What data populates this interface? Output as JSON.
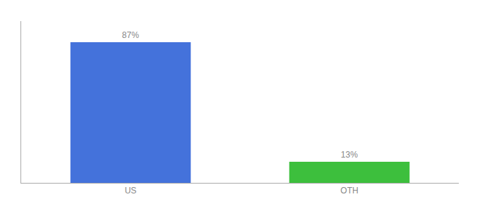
{
  "chart_data": {
    "type": "bar",
    "categories": [
      "US",
      "OTH"
    ],
    "values": [
      87,
      13
    ],
    "value_labels": [
      "87%",
      "13%"
    ],
    "colors": [
      "#4472db",
      "#3dbf3d"
    ],
    "ylim": [
      0,
      100
    ],
    "yticks": [],
    "grid": false,
    "tick_labels": "x",
    "data_labels": true
  }
}
